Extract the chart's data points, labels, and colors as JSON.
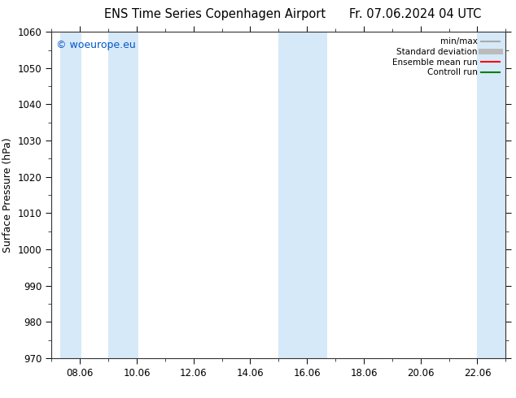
{
  "title_left": "ENS Time Series Copenhagen Airport",
  "title_right": "Fr. 07.06.2024 04 UTC",
  "ylabel": "Surface Pressure (hPa)",
  "ylim": [
    970,
    1060
  ],
  "yticks": [
    970,
    980,
    990,
    1000,
    1010,
    1020,
    1030,
    1040,
    1050,
    1060
  ],
  "xlim": [
    7.0,
    23.0
  ],
  "xtick_positions": [
    8,
    10,
    12,
    14,
    16,
    18,
    20,
    22
  ],
  "xtick_labels": [
    "08.06",
    "10.06",
    "12.06",
    "14.06",
    "16.06",
    "18.06",
    "20.06",
    "22.06"
  ],
  "shaded_bands": [
    {
      "x_start": 7.3,
      "x_end": 8.05
    },
    {
      "x_start": 9.0,
      "x_end": 10.05
    },
    {
      "x_start": 15.0,
      "x_end": 16.7
    },
    {
      "x_start": 22.0,
      "x_end": 23.0
    }
  ],
  "shaded_color": "#d6e9f8",
  "background_color": "#ffffff",
  "watermark": "© woeurope.eu",
  "watermark_color": "#0055cc",
  "legend_entries": [
    {
      "label": "min/max",
      "color": "#aaaaaa",
      "lw": 1.5
    },
    {
      "label": "Standard deviation",
      "color": "#bbbbbb",
      "lw": 5
    },
    {
      "label": "Ensemble mean run",
      "color": "#ff0000",
      "lw": 1.5
    },
    {
      "label": "Controll run",
      "color": "#008000",
      "lw": 1.5
    }
  ],
  "title_fontsize": 10.5,
  "tick_fontsize": 8.5,
  "ylabel_fontsize": 9,
  "watermark_fontsize": 9
}
